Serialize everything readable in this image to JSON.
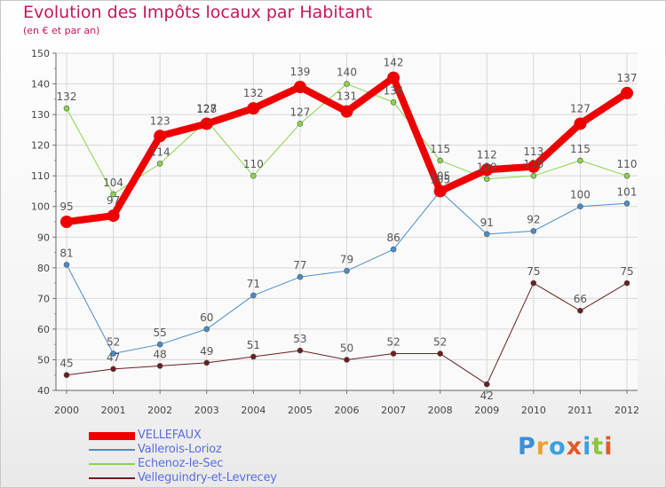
{
  "title": "Evolution des Impôts locaux par Habitant",
  "subtitle": "(en € et par an)",
  "brand": {
    "text": "Proxiti",
    "letters": [
      {
        "ch": "P",
        "color": "#3a8fd6"
      },
      {
        "ch": "r",
        "color": "#f0a030"
      },
      {
        "ch": "o",
        "color": "#3aa0e0"
      },
      {
        "ch": "x",
        "color": "#e05a2a"
      },
      {
        "ch": "i",
        "color": "#3aa0e0"
      },
      {
        "ch": "t",
        "color": "#8cc63f"
      },
      {
        "ch": "i",
        "color": "#e05a2a"
      }
    ]
  },
  "chart_data": {
    "type": "line",
    "title": "Evolution des Impôts locaux par Habitant",
    "subtitle": "(en € et par an)",
    "x": [
      2000,
      2001,
      2002,
      2003,
      2004,
      2005,
      2006,
      2007,
      2008,
      2009,
      2010,
      2011,
      2012
    ],
    "ylim": [
      40,
      150
    ],
    "yticks": [
      40,
      50,
      60,
      70,
      80,
      90,
      100,
      110,
      120,
      130,
      140,
      150
    ],
    "grid": true,
    "legend_position": "bottom-left",
    "series": [
      {
        "name": "Velleguindry-et-Levrecey",
        "color": "#6b1e1e",
        "line_width": 1,
        "marker_r": 3,
        "label_dy": [
          -9,
          -9,
          -9,
          -9,
          -9,
          -9,
          -9,
          -9,
          -9,
          9,
          -9,
          -9,
          -9
        ],
        "values": [
          45,
          47,
          48,
          49,
          51,
          53,
          50,
          52,
          52,
          42,
          75,
          66,
          75
        ]
      },
      {
        "name": "Vallerois-Lorioz",
        "color": "#4a8cc8",
        "line_width": 1,
        "marker_r": 3,
        "label_dy": [
          -9,
          -9,
          -9,
          -9,
          -9,
          -9,
          -9,
          -9,
          -9,
          -9,
          -9,
          -9,
          -9
        ],
        "values": [
          81,
          52,
          55,
          60,
          71,
          77,
          79,
          86,
          105,
          91,
          92,
          100,
          101
        ]
      },
      {
        "name": "Echenoz-le-Sec",
        "color": "#88d44a",
        "line_width": 1,
        "marker_r": 3,
        "label_dy": [
          -9,
          -9,
          -9,
          -9,
          -9,
          -9,
          -9,
          -9,
          -9,
          -9,
          -9,
          -9,
          -9
        ],
        "values": [
          132,
          104,
          114,
          128,
          110,
          127,
          140,
          134,
          115,
          109,
          110,
          115,
          110
        ]
      },
      {
        "name": "VELLEFAUX",
        "color": "#ee0000",
        "line_width": 8,
        "marker_r": 7,
        "label_dy": [
          -13,
          -13,
          -13,
          -13,
          -13,
          -13,
          -13,
          -13,
          -13,
          -13,
          -13,
          -13,
          -13
        ],
        "values": [
          95,
          97,
          123,
          127,
          132,
          139,
          131,
          142,
          105,
          112,
          113,
          127,
          137
        ]
      }
    ],
    "legend_order": [
      "VELLEFAUX",
      "Vallerois-Lorioz",
      "Echenoz-le-Sec",
      "Velleguindry-et-Levrecey"
    ]
  }
}
